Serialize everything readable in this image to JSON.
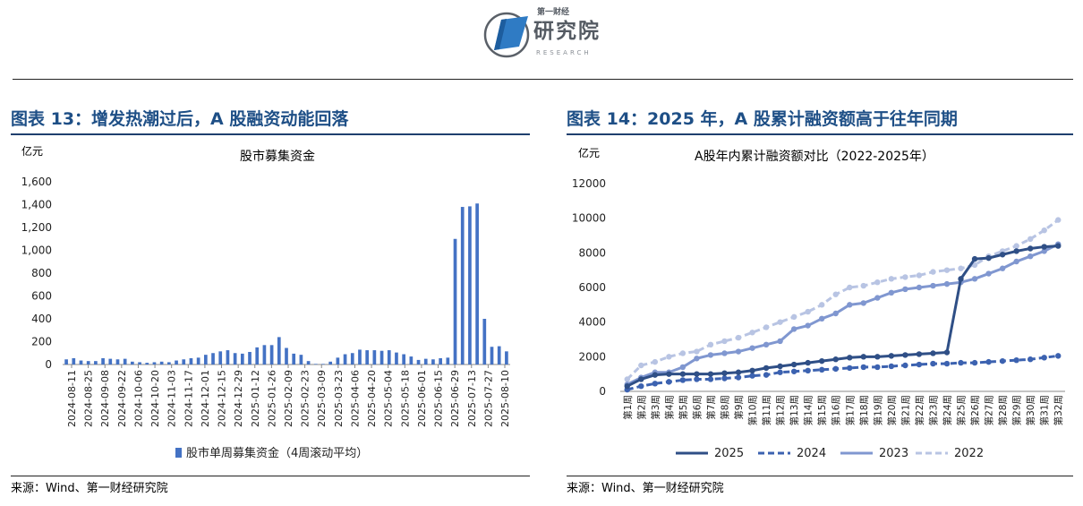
{
  "header": {
    "logo_small": "第一财经",
    "logo_main": "研究院",
    "logo_en": "RESEARCH"
  },
  "left": {
    "figure_title": "图表 13：增发热潮过后，A 股融资动能回落",
    "source": "来源：Wind、第一财经研究院"
  },
  "right": {
    "figure_title": "图表 14：2025 年，A 股累计融资额高于往年同期",
    "source": "来源：Wind、第一财经研究院"
  },
  "colors": {
    "title_blue": "#1e4f86",
    "bar": "#4472c4",
    "s2025": "#2f4f86",
    "s2024": "#3c62b0",
    "s2023": "#8097d0",
    "s2022": "#b8c4e3"
  },
  "chart_data": [
    {
      "type": "bar",
      "title": "股市募集资金",
      "unit": "亿元",
      "ylim": [
        0,
        1600
      ],
      "yticks": [
        "0",
        "200",
        "400",
        "600",
        "800",
        "1,000",
        "1,200",
        "1,400",
        "1,600"
      ],
      "ytick_values": [
        0,
        200,
        400,
        600,
        800,
        1000,
        1200,
        1400,
        1600
      ],
      "tick_labels": [
        "2024-08-11",
        "2024-08-25",
        "2024-09-08",
        "2024-09-22",
        "2024-10-06",
        "2024-10-20",
        "2024-11-03",
        "2024-11-17",
        "2024-12-01",
        "2024-12-15",
        "2024-12-29",
        "2025-01-12",
        "2025-01-26",
        "2025-02-09",
        "2025-02-23",
        "2025-03-09",
        "2025-03-23",
        "2025-04-06",
        "2025-04-20",
        "2025-05-04",
        "2025-05-18",
        "2025-06-01",
        "2025-06-15",
        "2025-06-29",
        "2025-07-13",
        "2025-07-27",
        "2025-08-10"
      ],
      "series": [
        {
          "name": "股市单周募集资金（4周滚动平均）",
          "values": [
            45,
            55,
            35,
            30,
            30,
            55,
            50,
            45,
            50,
            25,
            20,
            15,
            20,
            25,
            20,
            35,
            45,
            55,
            60,
            85,
            100,
            115,
            125,
            100,
            95,
            110,
            150,
            170,
            170,
            240,
            145,
            95,
            85,
            30,
            5,
            5,
            25,
            60,
            90,
            100,
            130,
            125,
            125,
            120,
            125,
            105,
            90,
            70,
            40,
            50,
            45,
            55,
            60,
            1100,
            1380,
            1385,
            1410,
            400,
            155,
            160,
            115
          ]
        }
      ],
      "legend": "bottom"
    },
    {
      "type": "line",
      "title": "A股年内累计融资额对比（2022-2025年）",
      "unit": "亿元",
      "ylim": [
        0,
        12000
      ],
      "yticks": [
        "0",
        "2000",
        "4000",
        "6000",
        "8000",
        "10000",
        "12000"
      ],
      "ytick_values": [
        0,
        2000,
        4000,
        6000,
        8000,
        10000,
        12000
      ],
      "categories": [
        "第1周",
        "第2周",
        "第3周",
        "第4周",
        "第5周",
        "第6周",
        "第7周",
        "第8周",
        "第9周",
        "第10周",
        "第11周",
        "第12周",
        "第13周",
        "第14周",
        "第15周",
        "第16周",
        "第17周",
        "第18周",
        "第19周",
        "第20周",
        "第21周",
        "第22周",
        "第23周",
        "第24周",
        "第25周",
        "第26周",
        "第27周",
        "第28周",
        "第29周",
        "第30周",
        "第31周",
        "第32周"
      ],
      "series": [
        {
          "name": "2025",
          "style": "solid",
          "values": [
            300,
            700,
            950,
            1000,
            1000,
            1000,
            1000,
            1050,
            1100,
            1200,
            1350,
            1450,
            1550,
            1650,
            1750,
            1850,
            1950,
            2000,
            2000,
            2050,
            2100,
            2150,
            2200,
            2250,
            6500,
            7650,
            7700,
            7900,
            8100,
            8250,
            8350,
            8400
          ]
        },
        {
          "name": "2024",
          "style": "dashed",
          "values": [
            100,
            300,
            450,
            550,
            650,
            700,
            700,
            750,
            800,
            900,
            950,
            1100,
            1150,
            1200,
            1250,
            1300,
            1350,
            1400,
            1400,
            1450,
            1500,
            1550,
            1600,
            1600,
            1650,
            1650,
            1700,
            1750,
            1800,
            1850,
            1950,
            2050
          ]
        },
        {
          "name": "2023",
          "style": "solid",
          "values": [
            400,
            800,
            1100,
            1100,
            1400,
            1900,
            2100,
            2200,
            2300,
            2500,
            2700,
            2900,
            3600,
            3800,
            4200,
            4500,
            5000,
            5100,
            5400,
            5700,
            5900,
            6000,
            6100,
            6200,
            6300,
            6500,
            6800,
            7100,
            7500,
            7800,
            8100,
            8500
          ]
        },
        {
          "name": "2022",
          "style": "dashed",
          "values": [
            700,
            1500,
            1700,
            2000,
            2200,
            2300,
            2700,
            2900,
            3100,
            3400,
            3700,
            4000,
            4300,
            4600,
            5000,
            5600,
            6000,
            6100,
            6300,
            6500,
            6600,
            6700,
            6900,
            7000,
            7100,
            7300,
            7800,
            8100,
            8400,
            8800,
            9300,
            9900
          ]
        }
      ],
      "legend": "bottom"
    }
  ]
}
